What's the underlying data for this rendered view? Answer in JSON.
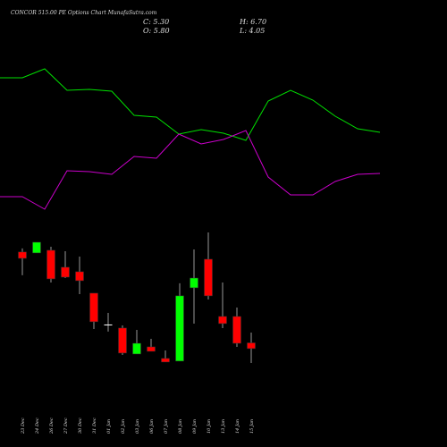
{
  "chart_data": [
    {
      "type": "candlestick",
      "title": "CONCOR 515.00 PE Options Chart MunafaSutra.com",
      "ohlc_labels": [
        "C: 5.30",
        "O: 5.80",
        "H: 6.70",
        "L: 4.05"
      ],
      "categories": [
        "23 Dec",
        "24 Dec",
        "26 Dec",
        "27 Dec",
        "30 Dec",
        "31 Dec",
        "01 Jan",
        "02 Jan",
        "03 Jan",
        "06 Jan",
        "07 Jan",
        "08 Jan",
        "09 Jan",
        "10 Jan",
        "13 Jan",
        "14 Jan",
        "15 Jan"
      ],
      "open": [
        13.72,
        13.64,
        13.87,
        12.39,
        12.0,
        10.13,
        7.4,
        7.09,
        4.83,
        5.45,
        4.44,
        4.21,
        10.6,
        13.09,
        8.1,
        8.1,
        5.8
      ],
      "high": [
        14.03,
        14.57,
        14.18,
        13.79,
        13.32,
        10.13,
        8.41,
        7.32,
        6.93,
        6.15,
        5.14,
        10.99,
        13.94,
        15.43,
        11.06,
        8.88,
        6.7
      ],
      "low": [
        11.69,
        13.64,
        11.06,
        11.45,
        10.05,
        7.01,
        6.78,
        4.75,
        4.83,
        5.06,
        4.13,
        4.21,
        7.48,
        9.58,
        7.09,
        5.45,
        4.05
      ],
      "close": [
        13.17,
        14.57,
        11.38,
        11.53,
        11.22,
        7.64,
        7.4,
        4.91,
        5.76,
        5.06,
        4.13,
        9.9,
        11.45,
        9.9,
        7.48,
        5.76,
        5.3
      ],
      "up_color": "#00ff00",
      "down_color": "#ff0000",
      "ylim": [
        -3.28,
        35.69
      ]
    },
    {
      "type": "line",
      "series": [
        {
          "color": "#00e000",
          "values": [
            213,
            213,
            223,
            199,
            200,
            198,
            171,
            169,
            150,
            155,
            151,
            143,
            187,
            199,
            188,
            170,
            156,
            152
          ]
        },
        {
          "color": "#cc00cc",
          "values": [
            80,
            80,
            66,
            109,
            108,
            105,
            125,
            123,
            150,
            139,
            144,
            154,
            102,
            82,
            82,
            97,
            105,
            106
          ]
        }
      ],
      "ylim": [
        0,
        300
      ]
    }
  ]
}
